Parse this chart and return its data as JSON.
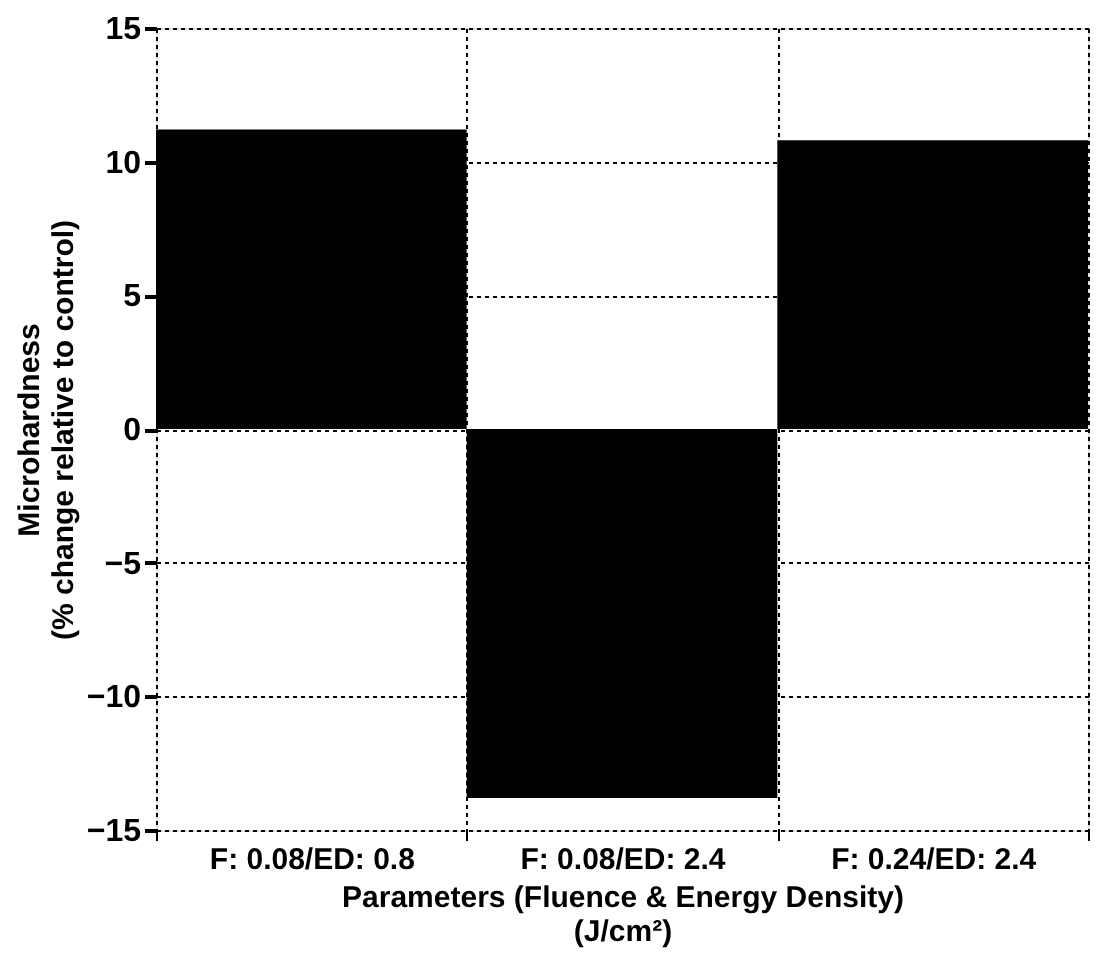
{
  "chart_data": {
    "type": "bar",
    "xlabel": "Parameters (Fluence & Energy Density)\n(J/cm²)",
    "ylabel": "Microhardness\n(% change relative to control)",
    "categories": [
      "F: 0.08/ED: 0.8",
      "F: 0.08/ED: 2.4",
      "F: 0.24/ED: 2.4"
    ],
    "values": [
      11.2,
      -13.8,
      10.8
    ],
    "color": "#000000",
    "ylim": [
      -15,
      15
    ],
    "yticks": [
      -15,
      -10,
      -5,
      0,
      5,
      10,
      15
    ],
    "grid": true
  }
}
